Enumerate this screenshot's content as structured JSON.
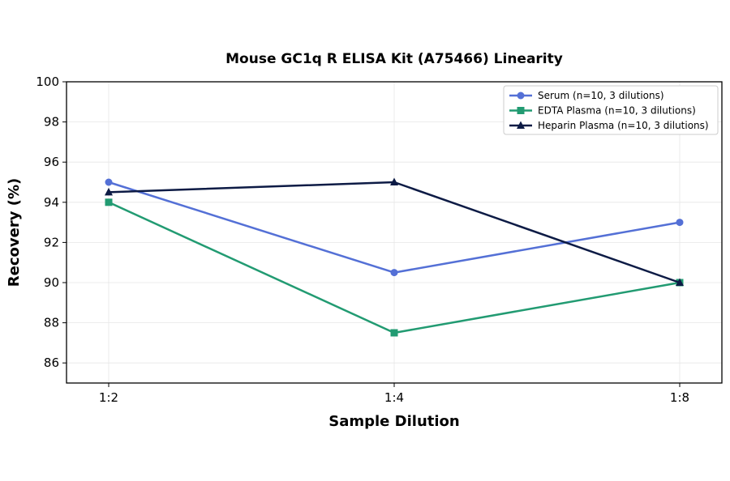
{
  "chart_data": {
    "type": "line",
    "title": "Mouse GC1q R ELISA Kit (A75466) Linearity",
    "xlabel": "Sample Dilution",
    "ylabel": "Recovery (%)",
    "categories": [
      "1:2",
      "1:4",
      "1:8"
    ],
    "ylim": [
      85,
      100
    ],
    "yticks": [
      86,
      88,
      90,
      92,
      94,
      96,
      98,
      100
    ],
    "grid": true,
    "legend_position": "top-right",
    "series": [
      {
        "name": "Serum (n=10, 3 dilutions)",
        "values": [
          95,
          90.5,
          93
        ],
        "color": "#5470d6",
        "marker": "circle"
      },
      {
        "name": "EDTA Plasma (n=10, 3 dilutions)",
        "values": [
          94,
          87.5,
          90
        ],
        "color": "#229b72",
        "marker": "square"
      },
      {
        "name": "Heparin Plasma (n=10, 3 dilutions)",
        "values": [
          94.5,
          95,
          90
        ],
        "color": "#0d1b45",
        "marker": "triangle"
      }
    ]
  }
}
